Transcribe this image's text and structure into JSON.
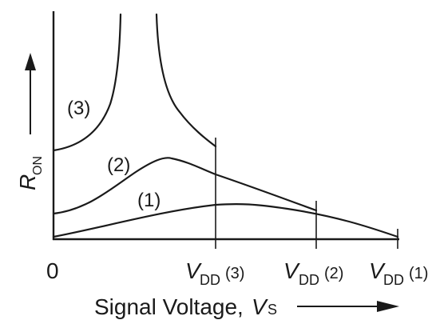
{
  "y_axis": {
    "label_main": "R",
    "label_sub": "ON"
  },
  "x_axis": {
    "label_main": "Signal Voltage, ",
    "label_var": "V",
    "label_sub": "S",
    "origin": "0"
  },
  "curves": [
    {
      "tag": "(1)"
    },
    {
      "tag": "(2)"
    },
    {
      "tag": "(3)"
    }
  ],
  "vdd_labels": [
    {
      "main": "V",
      "sub": "DD",
      "tag": "(3)"
    },
    {
      "main": "V",
      "sub": "DD",
      "tag": "(2)"
    },
    {
      "main": "V",
      "sub": "DD",
      "tag": "(1)"
    }
  ]
}
